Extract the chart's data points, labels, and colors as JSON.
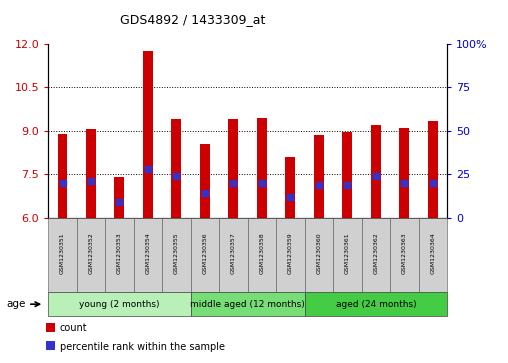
{
  "title": "GDS4892 / 1433309_at",
  "samples": [
    "GSM1230351",
    "GSM1230352",
    "GSM1230353",
    "GSM1230354",
    "GSM1230355",
    "GSM1230356",
    "GSM1230357",
    "GSM1230358",
    "GSM1230359",
    "GSM1230360",
    "GSM1230361",
    "GSM1230362",
    "GSM1230363",
    "GSM1230364"
  ],
  "count_values": [
    8.9,
    9.05,
    7.4,
    11.75,
    9.4,
    8.55,
    9.4,
    9.45,
    8.1,
    8.85,
    8.95,
    9.2,
    9.1,
    9.35
  ],
  "percentile_values_pct": [
    20,
    21,
    9,
    28,
    24,
    14,
    20,
    20,
    12,
    19,
    19,
    24,
    20,
    20
  ],
  "ylim_left": [
    6,
    12
  ],
  "ylim_right": [
    0,
    100
  ],
  "yticks_left": [
    6,
    7.5,
    9,
    10.5,
    12
  ],
  "yticks_right": [
    0,
    25,
    50,
    75,
    100
  ],
  "ytick_labels_right": [
    "0",
    "25",
    "50",
    "75",
    "100%"
  ],
  "bar_color": "#cc0000",
  "dot_color": "#3333cc",
  "background_plot": "#ffffff",
  "groups": [
    {
      "label": "young (2 months)",
      "start": 0,
      "end": 4,
      "color": "#aaeaaa"
    },
    {
      "label": "middle aged (12 months)",
      "start": 5,
      "end": 8,
      "color": "#77dd77"
    },
    {
      "label": "aged (24 months)",
      "start": 9,
      "end": 13,
      "color": "#44cc44"
    }
  ],
  "age_label": "age",
  "legend_count_label": "count",
  "legend_percentile_label": "percentile rank within the sample",
  "tick_label_color_left": "#cc0000",
  "tick_label_color_right": "#0000cc",
  "bar_width": 0.35
}
